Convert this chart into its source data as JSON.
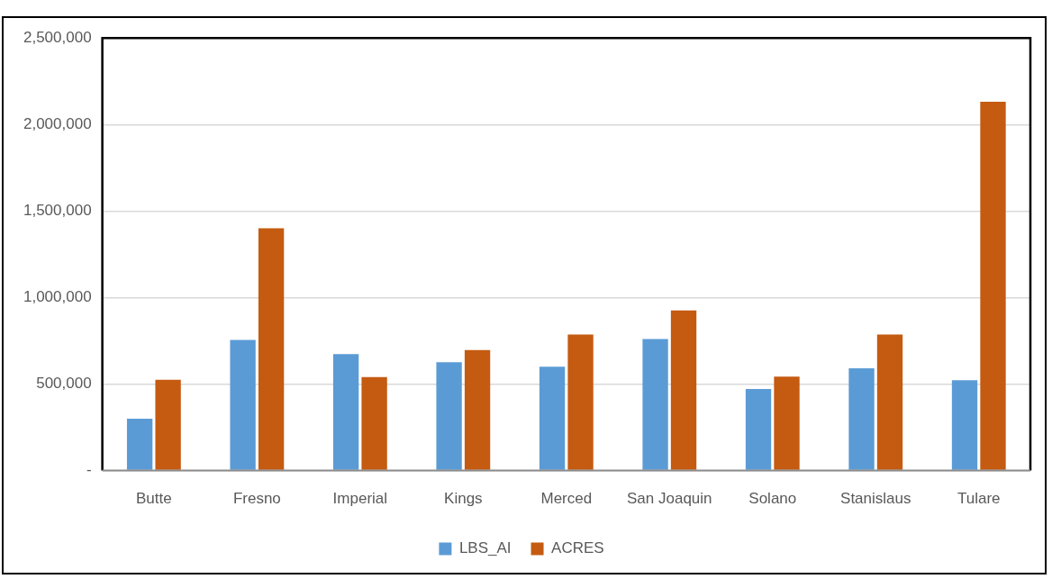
{
  "chart_data": {
    "type": "bar",
    "categories": [
      "Butte",
      "Fresno",
      "Imperial",
      "Kings",
      "Merced",
      "San Joaquin",
      "Solano",
      "Stanislaus",
      "Tulare"
    ],
    "series": [
      {
        "name": "LBS_AI",
        "color": "#5b9bd5",
        "values": [
          300000,
          755000,
          673000,
          626000,
          600000,
          760000,
          471000,
          591000,
          522000
        ]
      },
      {
        "name": "ACRES",
        "color": "#c55a11",
        "values": [
          525000,
          1400000,
          540000,
          697000,
          786000,
          925000,
          543000,
          786000,
          2132000
        ]
      }
    ],
    "ylim": [
      0,
      2500000
    ],
    "yticks": [
      {
        "value": 0,
        "label": "-"
      },
      {
        "value": 500000,
        "label": "500,000"
      },
      {
        "value": 1000000,
        "label": "1,000,000"
      },
      {
        "value": 1500000,
        "label": "1,500,000"
      },
      {
        "value": 2000000,
        "label": "2,000,000"
      },
      {
        "value": 2500000,
        "label": "2,500,000"
      }
    ],
    "grid": "y",
    "legend": "bottom"
  }
}
